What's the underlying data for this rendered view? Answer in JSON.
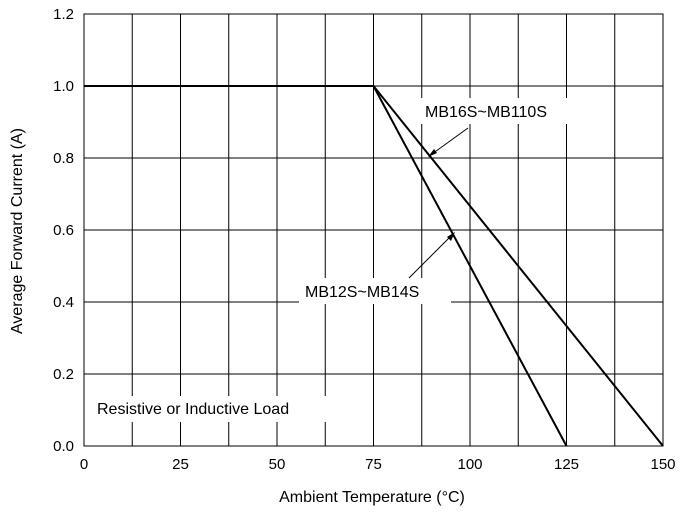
{
  "chart_data": {
    "type": "line",
    "xlabel": "Ambient Temperature (°C)",
    "ylabel": "Average Forward Current (A)",
    "xlim": [
      0,
      150
    ],
    "ylim": [
      0,
      1.2
    ],
    "x_ticks": [
      "0",
      "25",
      "50",
      "75",
      "100",
      "125",
      "150"
    ],
    "y_ticks": [
      "0.0",
      "0.2",
      "0.4",
      "0.6",
      "0.8",
      "1.0",
      "1.2"
    ],
    "grid": true,
    "series": [
      {
        "name": "MB16S~MB110S",
        "x": [
          0,
          75,
          150
        ],
        "y": [
          1.0,
          1.0,
          0.0
        ]
      },
      {
        "name": "MB12S~MB14S",
        "x": [
          0,
          75,
          125
        ],
        "y": [
          1.0,
          1.0,
          0.0
        ]
      }
    ],
    "annotations": [
      {
        "text": "MB16S~MB110S",
        "points_to": {
          "x": 90,
          "y": 0.8
        }
      },
      {
        "text": "MB12S~MB14S",
        "points_to": {
          "x": 97,
          "y": 0.56
        }
      },
      {
        "text": "Resistive or Inductive Load"
      }
    ]
  }
}
